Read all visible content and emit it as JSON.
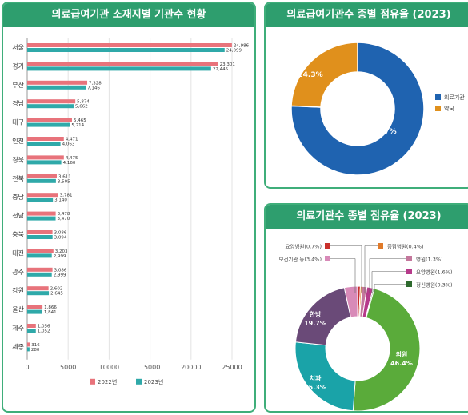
{
  "panel1": {
    "title": "의료급여기관 소재지별 기관수 현황",
    "legend": [
      "2022년",
      "2023년"
    ],
    "colors": [
      "#e8737b",
      "#2fa9a9"
    ]
  },
  "panel2": {
    "title": "의료급여기관수 종별 점유율 (2023)",
    "labels": [
      "24.3%",
      "75.7%"
    ],
    "legend": [
      "의료기관",
      "약국"
    ],
    "colors": [
      "#1f63b0",
      "#e0901c"
    ]
  },
  "panel3": {
    "title": "의료기관수 종별 점유율 (2023)",
    "callouts": [
      "요양병원(0.7%)",
      "종합병원(0.4%)",
      "병원(1.3%)",
      "요양병원(1.6%)",
      "정신병원(0.3%)",
      "보건기관 등(3.4%)"
    ],
    "segment_labels": [
      {
        "name": "의원",
        "pct": "46.4%"
      },
      {
        "name": "치과",
        "pct": "25.3%"
      },
      {
        "name": "한방",
        "pct": "19.7%"
      }
    ]
  },
  "chart_data": [
    {
      "type": "bar",
      "title": "의료급여기관 소재지별 기관수 현황",
      "categories": [
        "서울",
        "경기",
        "부산",
        "경남",
        "대구",
        "인천",
        "경북",
        "전북",
        "충남",
        "전남",
        "충북",
        "대전",
        "광주",
        "강원",
        "울산",
        "제주",
        "세종"
      ],
      "series": [
        {
          "name": "2022년",
          "values": [
            24986,
            23301,
            7328,
            5874,
            5465,
            4471,
            4475,
            3611,
            3781,
            3478,
            3086,
            3203,
            3086,
            2602,
            1866,
            1056,
            316
          ],
          "labels": [
            "24,986",
            "23,301",
            "7,328",
            "5,874",
            "5,465",
            "4,471",
            "4,475",
            "3,611",
            "3,781",
            "3,478",
            "3,086",
            "3,203",
            "3,086",
            "2,602",
            "1,866",
            "1,056",
            "316"
          ]
        },
        {
          "name": "2023년",
          "values": [
            24099,
            22445,
            7146,
            5662,
            5214,
            4063,
            4160,
            3505,
            3140,
            3470,
            3094,
            2999,
            2999,
            2645,
            1841,
            1052,
            280
          ],
          "labels": [
            "24,099",
            "22,445",
            "7,146",
            "5,662",
            "5,214",
            "4,063",
            "4,160",
            "3,505",
            "3,140",
            "3,470",
            "3,094",
            "2,999",
            "2,999",
            "2,645",
            "1,841",
            "1,052",
            "280"
          ]
        }
      ],
      "xlim": [
        0,
        25000
      ],
      "xticks": [
        "0",
        "5000",
        "10000",
        "15000",
        "20000",
        "25000"
      ],
      "grid": true,
      "legend_position": "bottom"
    },
    {
      "type": "pie",
      "title": "의료급여기관수 종별 점유율 (2023)",
      "categories": [
        "의료기관",
        "약국"
      ],
      "values": [
        75.7,
        24.3
      ],
      "legend_position": "right"
    },
    {
      "type": "pie",
      "title": "의료기관수 종별 점유율 (2023)",
      "categories": [
        "의원",
        "치과",
        "한방",
        "보건기관 등",
        "요양병원",
        "종합병원",
        "병원",
        "요양병원",
        "정신병원"
      ],
      "values": [
        46.4,
        25.3,
        19.7,
        3.4,
        0.7,
        0.4,
        1.3,
        1.6,
        0.3
      ],
      "colors": [
        "#5aab3a",
        "#1aa3a8",
        "#6a4a78",
        "#d88ab8",
        "#c9302c",
        "#e07a2a",
        "#c4779c",
        "#b63a8a",
        "#2e6a2e"
      ]
    }
  ]
}
